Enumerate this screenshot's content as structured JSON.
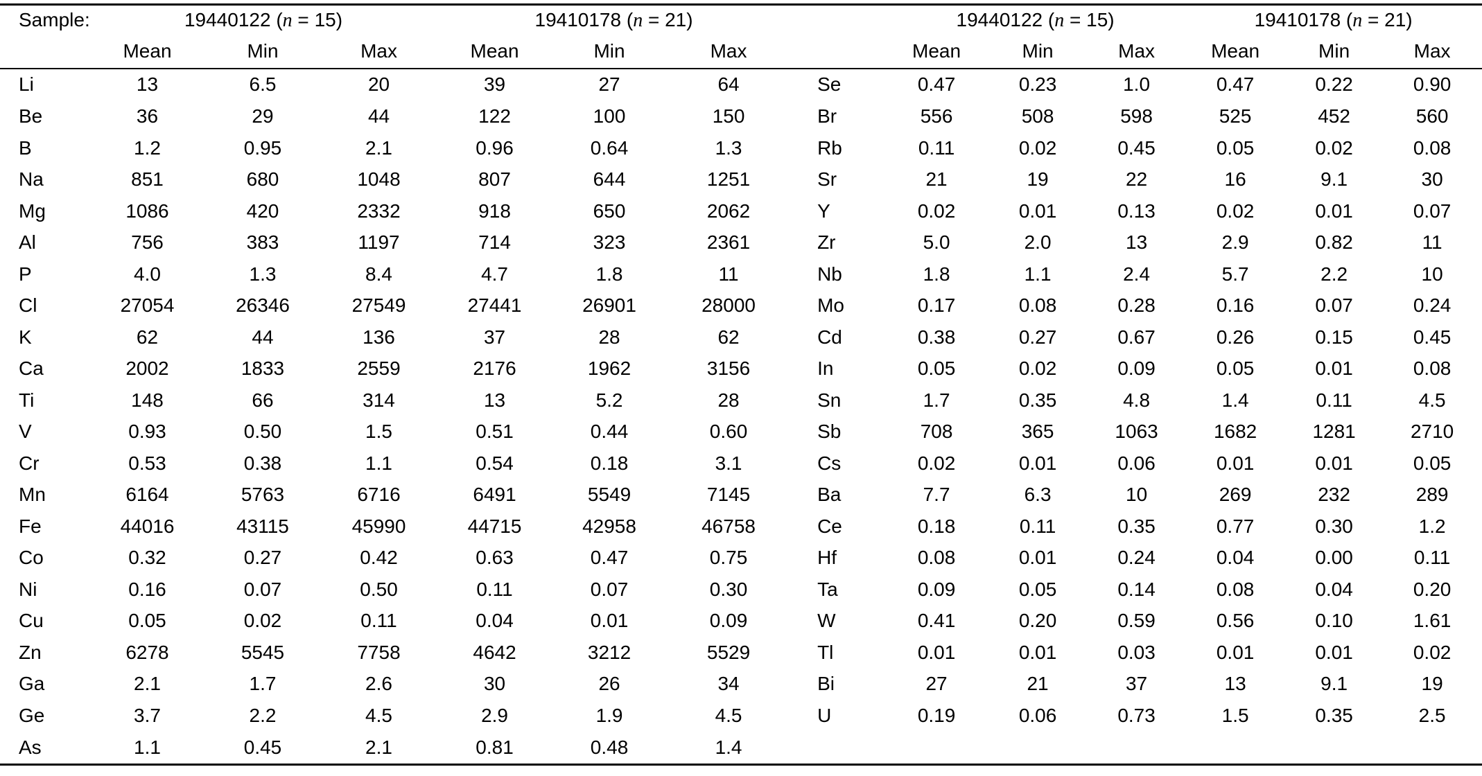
{
  "page": {
    "background": "#ffffff",
    "text_color": "#000000"
  },
  "table": {
    "sample_label": "Sample:",
    "groups": [
      {
        "prefix": "19440122 (",
        "var": "n",
        "suffix": " = 15)"
      },
      {
        "prefix": "19410178 (",
        "var": "n",
        "suffix": " = 21)"
      }
    ],
    "subheaders": [
      "Mean",
      "Min",
      "Max"
    ],
    "rows_left": [
      {
        "element": "Li",
        "values": [
          "13",
          "6.5",
          "20",
          "39",
          "27",
          "64"
        ]
      },
      {
        "element": "Be",
        "values": [
          "36",
          "29",
          "44",
          "122",
          "100",
          "150"
        ]
      },
      {
        "element": "B",
        "values": [
          "1.2",
          "0.95",
          "2.1",
          "0.96",
          "0.64",
          "1.3"
        ]
      },
      {
        "element": "Na",
        "values": [
          "851",
          "680",
          "1048",
          "807",
          "644",
          "1251"
        ]
      },
      {
        "element": "Mg",
        "values": [
          "1086",
          "420",
          "2332",
          "918",
          "650",
          "2062"
        ]
      },
      {
        "element": "Al",
        "values": [
          "756",
          "383",
          "1197",
          "714",
          "323",
          "2361"
        ]
      },
      {
        "element": "P",
        "values": [
          "4.0",
          "1.3",
          "8.4",
          "4.7",
          "1.8",
          "11"
        ]
      },
      {
        "element": "Cl",
        "values": [
          "27054",
          "26346",
          "27549",
          "27441",
          "26901",
          "28000"
        ]
      },
      {
        "element": "K",
        "values": [
          "62",
          "44",
          "136",
          "37",
          "28",
          "62"
        ]
      },
      {
        "element": "Ca",
        "values": [
          "2002",
          "1833",
          "2559",
          "2176",
          "1962",
          "3156"
        ]
      },
      {
        "element": "Ti",
        "values": [
          "148",
          "66",
          "314",
          "13",
          "5.2",
          "28"
        ]
      },
      {
        "element": "V",
        "values": [
          "0.93",
          "0.50",
          "1.5",
          "0.51",
          "0.44",
          "0.60"
        ]
      },
      {
        "element": "Cr",
        "values": [
          "0.53",
          "0.38",
          "1.1",
          "0.54",
          "0.18",
          "3.1"
        ]
      },
      {
        "element": "Mn",
        "values": [
          "6164",
          "5763",
          "6716",
          "6491",
          "5549",
          "7145"
        ]
      },
      {
        "element": "Fe",
        "values": [
          "44016",
          "43115",
          "45990",
          "44715",
          "42958",
          "46758"
        ]
      },
      {
        "element": "Co",
        "values": [
          "0.32",
          "0.27",
          "0.42",
          "0.63",
          "0.47",
          "0.75"
        ]
      },
      {
        "element": "Ni",
        "values": [
          "0.16",
          "0.07",
          "0.50",
          "0.11",
          "0.07",
          "0.30"
        ]
      },
      {
        "element": "Cu",
        "values": [
          "0.05",
          "0.02",
          "0.11",
          "0.04",
          "0.01",
          "0.09"
        ]
      },
      {
        "element": "Zn",
        "values": [
          "6278",
          "5545",
          "7758",
          "4642",
          "3212",
          "5529"
        ]
      },
      {
        "element": "Ga",
        "values": [
          "2.1",
          "1.7",
          "2.6",
          "30",
          "26",
          "34"
        ]
      },
      {
        "element": "Ge",
        "values": [
          "3.7",
          "2.2",
          "4.5",
          "2.9",
          "1.9",
          "4.5"
        ]
      },
      {
        "element": "As",
        "values": [
          "1.1",
          "0.45",
          "2.1",
          "0.81",
          "0.48",
          "1.4"
        ]
      }
    ],
    "rows_right": [
      {
        "element": "Se",
        "values": [
          "0.47",
          "0.23",
          "1.0",
          "0.47",
          "0.22",
          "0.90"
        ]
      },
      {
        "element": "Br",
        "values": [
          "556",
          "508",
          "598",
          "525",
          "452",
          "560"
        ]
      },
      {
        "element": "Rb",
        "values": [
          "0.11",
          "0.02",
          "0.45",
          "0.05",
          "0.02",
          "0.08"
        ]
      },
      {
        "element": "Sr",
        "values": [
          "21",
          "19",
          "22",
          "16",
          "9.1",
          "30"
        ]
      },
      {
        "element": "Y",
        "values": [
          "0.02",
          "0.01",
          "0.13",
          "0.02",
          "0.01",
          "0.07"
        ]
      },
      {
        "element": "Zr",
        "values": [
          "5.0",
          "2.0",
          "13",
          "2.9",
          "0.82",
          "11"
        ]
      },
      {
        "element": "Nb",
        "values": [
          "1.8",
          "1.1",
          "2.4",
          "5.7",
          "2.2",
          "10"
        ]
      },
      {
        "element": "Mo",
        "values": [
          "0.17",
          "0.08",
          "0.28",
          "0.16",
          "0.07",
          "0.24"
        ]
      },
      {
        "element": "Cd",
        "values": [
          "0.38",
          "0.27",
          "0.67",
          "0.26",
          "0.15",
          "0.45"
        ]
      },
      {
        "element": "In",
        "values": [
          "0.05",
          "0.02",
          "0.09",
          "0.05",
          "0.01",
          "0.08"
        ]
      },
      {
        "element": "Sn",
        "values": [
          "1.7",
          "0.35",
          "4.8",
          "1.4",
          "0.11",
          "4.5"
        ]
      },
      {
        "element": "Sb",
        "values": [
          "708",
          "365",
          "1063",
          "1682",
          "1281",
          "2710"
        ]
      },
      {
        "element": "Cs",
        "values": [
          "0.02",
          "0.01",
          "0.06",
          "0.01",
          "0.01",
          "0.05"
        ]
      },
      {
        "element": "Ba",
        "values": [
          "7.7",
          "6.3",
          "10",
          "269",
          "232",
          "289"
        ]
      },
      {
        "element": "Ce",
        "values": [
          "0.18",
          "0.11",
          "0.35",
          "0.77",
          "0.30",
          "1.2"
        ]
      },
      {
        "element": "Hf",
        "values": [
          "0.08",
          "0.01",
          "0.24",
          "0.04",
          "0.00",
          "0.11"
        ]
      },
      {
        "element": "Ta",
        "values": [
          "0.09",
          "0.05",
          "0.14",
          "0.08",
          "0.04",
          "0.20"
        ]
      },
      {
        "element": "W",
        "values": [
          "0.41",
          "0.20",
          "0.59",
          "0.56",
          "0.10",
          "1.61"
        ]
      },
      {
        "element": "Tl",
        "values": [
          "0.01",
          "0.01",
          "0.03",
          "0.01",
          "0.01",
          "0.02"
        ]
      },
      {
        "element": "Bi",
        "values": [
          "27",
          "21",
          "37",
          "13",
          "9.1",
          "19"
        ]
      },
      {
        "element": "U",
        "values": [
          "0.19",
          "0.06",
          "0.73",
          "1.5",
          "0.35",
          "2.5"
        ]
      }
    ]
  }
}
